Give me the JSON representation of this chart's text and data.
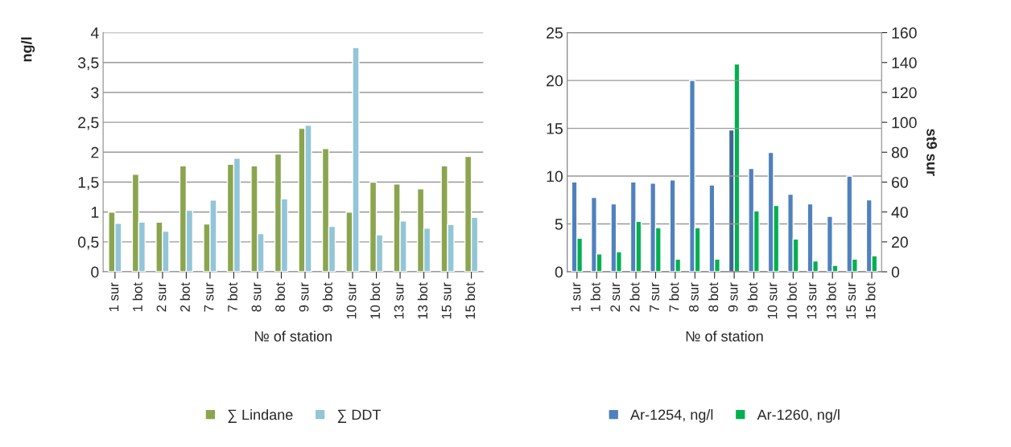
{
  "chart_data": [
    {
      "type": "bar",
      "categories": [
        "1 sur",
        "1 bot",
        "2 sur",
        "2 bot",
        "7 sur",
        "7 bot",
        "8 sur",
        "8 bot",
        "9 sur",
        "9 bot",
        "10 sur",
        "10 bot",
        "13 sur",
        "13 bot",
        "15 sur",
        "15 bot"
      ],
      "xlabel": "№ of station",
      "ylabel": "ng/l",
      "series": [
        {
          "name": "∑ Lindane",
          "color": "#8aa54e",
          "values": [
            1.0,
            1.63,
            0.83,
            1.77,
            0.8,
            1.8,
            1.77,
            1.97,
            2.4,
            2.06,
            1.0,
            1.5,
            1.47,
            1.39,
            1.77,
            1.93
          ]
        },
        {
          "name": "∑ DDT",
          "color": "#93c5d8",
          "values": [
            0.81,
            0.83,
            0.68,
            1.03,
            1.2,
            1.9,
            0.64,
            1.22,
            2.45,
            0.76,
            3.75,
            0.62,
            0.85,
            0.73,
            0.79,
            0.91
          ]
        }
      ],
      "ylim": [
        0,
        4
      ],
      "yticks": [
        0,
        {
          "value": 0.5,
          "label": "0,5"
        },
        1,
        {
          "value": 1.5,
          "label": "1,5"
        },
        2,
        {
          "value": 2.5,
          "label": "2,5"
        },
        3,
        {
          "value": 3.5,
          "label": "3,5"
        },
        4
      ],
      "grid": "y",
      "legend": "bottom"
    },
    {
      "type": "bar",
      "categories": [
        "1 sur",
        "1 bot",
        "2 sur",
        "2 bot",
        "7 sur",
        "7 bot",
        "8 sur",
        "8 bot",
        "9 sur",
        "9 bot",
        "10 sur",
        "10 bot",
        "13 sur",
        "13 bot",
        "15 sur",
        "15 bot"
      ],
      "xlabel": "№ of station",
      "y2label": "st9 sur",
      "series": [
        {
          "name": "Ar-1254, ng/l",
          "color": "#4f81bd",
          "values": [
            9.4,
            7.77,
            7.1,
            9.4,
            9.27,
            9.6,
            20,
            9.07,
            null,
            10.8,
            12.47,
            8.1,
            7.1,
            5.8,
            10.0,
            7.53
          ]
        },
        {
          "name": "Ar-1260, ng/l",
          "color": "#00b050",
          "values": [
            3.5,
            1.87,
            2.1,
            5.27,
            4.6,
            1.33,
            4.6,
            1.33,
            null,
            6.37,
            6.93,
            3.43,
            1.13,
            0.67,
            1.33,
            1.67
          ]
        },
        {
          "color": "#3d6496",
          "axis": "y2",
          "values": [
            null,
            null,
            null,
            null,
            null,
            null,
            null,
            null,
            95,
            null,
            null,
            null,
            null,
            null,
            null,
            null
          ]
        },
        {
          "color": "#00b050",
          "axis": "y2",
          "values": [
            null,
            null,
            null,
            null,
            null,
            null,
            null,
            null,
            139,
            null,
            null,
            null,
            null,
            null,
            null,
            null
          ]
        }
      ],
      "ylim": [
        0,
        25
      ],
      "yticks": [
        0,
        5,
        10,
        15,
        20,
        25
      ],
      "y2lim": [
        0,
        160
      ],
      "y2ticks": [
        0,
        20,
        40,
        60,
        80,
        100,
        120,
        140,
        160
      ],
      "grid": "y",
      "legend": "bottom"
    }
  ]
}
